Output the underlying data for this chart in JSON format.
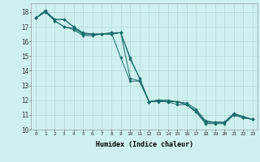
{
  "xlabel": "Humidex (Indice chaleur)",
  "bg_color": "#cff0f0",
  "grid_color": "#b0d8d8",
  "line_color": "#1a6b6b",
  "xlim": [
    -0.5,
    23.5
  ],
  "ylim": [
    10,
    18.6
  ],
  "xticks": [
    0,
    1,
    2,
    3,
    4,
    5,
    6,
    7,
    8,
    9,
    10,
    11,
    12,
    13,
    14,
    15,
    16,
    17,
    18,
    19,
    20,
    21,
    22,
    23
  ],
  "yticks": [
    10,
    11,
    12,
    13,
    14,
    15,
    16,
    17,
    18
  ],
  "series": [
    [
      17.6,
      18.1,
      17.4,
      17.0,
      16.9,
      16.5,
      16.5,
      16.5,
      16.6,
      16.6,
      14.8,
      13.5,
      11.9,
      11.9,
      11.9,
      11.9,
      11.7,
      11.2,
      10.4,
      10.4,
      10.4,
      11.0,
      10.8,
      10.7
    ],
    [
      17.6,
      18.1,
      17.5,
      17.5,
      17.0,
      16.6,
      16.5,
      16.5,
      16.5,
      16.6,
      14.9,
      13.5,
      11.9,
      12.0,
      11.9,
      11.9,
      11.7,
      11.3,
      10.5,
      10.5,
      10.5,
      11.1,
      10.8,
      10.7
    ],
    [
      17.6,
      18.0,
      17.5,
      17.5,
      17.0,
      16.5,
      16.5,
      16.5,
      16.5,
      16.6,
      13.5,
      13.3,
      11.9,
      12.0,
      12.0,
      11.9,
      11.8,
      11.4,
      10.6,
      10.5,
      10.5,
      11.1,
      10.9,
      10.7
    ],
    [
      17.6,
      18.0,
      17.4,
      17.0,
      16.8,
      16.4,
      16.4,
      16.5,
      16.6,
      14.9,
      13.3,
      13.3,
      11.9,
      12.0,
      11.9,
      11.7,
      11.7,
      11.2,
      10.5,
      10.5,
      10.5,
      11.0,
      10.8,
      10.7
    ]
  ]
}
